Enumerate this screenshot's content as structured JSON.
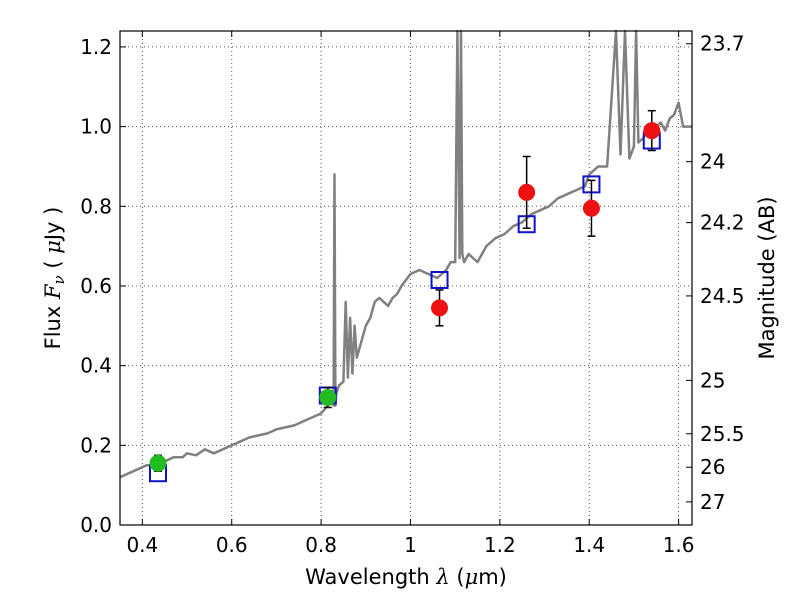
{
  "chart_data": {
    "type": "scatter",
    "xlabel": "Wavelength  λ (μm)",
    "ylabel": "Flux  F_ν  ( μJy )",
    "ylabel_parts": {
      "prefix": "Flux  ",
      "var": "F",
      "sub": "ν",
      "unit_open": "  ( ",
      "mu": "μ",
      "unit_close": "Jy )"
    },
    "xlabel_parts": {
      "prefix": "Wavelength  ",
      "var": "λ",
      "unit_open": " (",
      "mu": "μ",
      "unit_close": "m)"
    },
    "ylabel_right": "Magnitude (AB)",
    "xlim": [
      0.35,
      1.63
    ],
    "ylim": [
      0.0,
      1.24
    ],
    "grid": true,
    "x_ticks": [
      0.4,
      0.6,
      0.8,
      1.0,
      1.2,
      1.4,
      1.6
    ],
    "x_tick_labels": [
      "0.4",
      "0.6",
      "0.8",
      "1",
      "1.2",
      "1.4",
      "1.6"
    ],
    "y_ticks": [
      0.0,
      0.2,
      0.4,
      0.6,
      0.8,
      1.0,
      1.2
    ],
    "y_tick_labels": [
      "0.0",
      "0.2",
      "0.4",
      "0.6",
      "0.8",
      "1.0",
      "1.2"
    ],
    "right_ticks": [
      {
        "label": "23.7",
        "flux": 1.208
      },
      {
        "label": "24",
        "flux": 0.912
      },
      {
        "label": "24.2",
        "flux": 0.759
      },
      {
        "label": "24.5",
        "flux": 0.575
      },
      {
        "label": "25",
        "flux": 0.363
      },
      {
        "label": "25.5",
        "flux": 0.229
      },
      {
        "label": "26",
        "flux": 0.145
      },
      {
        "label": "27",
        "flux": 0.058
      }
    ],
    "colors": {
      "model": "#808080",
      "green_points": "#22bb22",
      "red_points": "#ee1111",
      "squares": "#1111cc",
      "errorbars": "#000000",
      "grid": "#555555"
    },
    "series": [
      {
        "name": "model-spectrum",
        "kind": "line",
        "x": [
          0.35,
          0.37,
          0.39,
          0.41,
          0.43,
          0.45,
          0.47,
          0.49,
          0.5,
          0.52,
          0.54,
          0.56,
          0.58,
          0.6,
          0.62,
          0.64,
          0.66,
          0.68,
          0.7,
          0.72,
          0.74,
          0.76,
          0.78,
          0.8,
          0.815,
          0.822,
          0.826,
          0.828,
          0.83,
          0.832,
          0.834,
          0.84,
          0.85,
          0.855,
          0.86,
          0.865,
          0.87,
          0.875,
          0.88,
          0.9,
          0.91,
          0.92,
          0.93,
          0.94,
          0.95,
          0.96,
          0.97,
          0.98,
          1.0,
          1.02,
          1.04,
          1.06,
          1.08,
          1.09,
          1.1,
          1.105,
          1.11,
          1.113,
          1.116,
          1.12,
          1.125,
          1.13,
          1.15,
          1.17,
          1.19,
          1.21,
          1.23,
          1.25,
          1.27,
          1.29,
          1.31,
          1.33,
          1.35,
          1.37,
          1.39,
          1.4,
          1.42,
          1.44,
          1.46,
          1.47,
          1.48,
          1.49,
          1.5,
          1.505,
          1.51,
          1.52,
          1.53,
          1.54,
          1.55,
          1.56,
          1.57,
          1.58,
          1.59,
          1.6,
          1.61,
          1.62,
          1.63
        ],
        "y": [
          0.12,
          0.13,
          0.14,
          0.15,
          0.15,
          0.16,
          0.17,
          0.17,
          0.18,
          0.175,
          0.19,
          0.18,
          0.19,
          0.2,
          0.21,
          0.22,
          0.225,
          0.23,
          0.24,
          0.245,
          0.25,
          0.26,
          0.27,
          0.28,
          0.3,
          0.31,
          0.32,
          0.3,
          0.88,
          0.3,
          0.33,
          0.35,
          0.36,
          0.56,
          0.37,
          0.52,
          0.38,
          0.5,
          0.42,
          0.5,
          0.52,
          0.56,
          0.57,
          0.56,
          0.55,
          0.57,
          0.58,
          0.6,
          0.63,
          0.64,
          0.63,
          0.62,
          0.64,
          0.66,
          0.66,
          1.24,
          0.67,
          1.24,
          0.68,
          0.66,
          0.67,
          0.68,
          0.66,
          0.7,
          0.72,
          0.73,
          0.75,
          0.76,
          0.78,
          0.79,
          0.8,
          0.82,
          0.83,
          0.84,
          0.85,
          0.88,
          0.9,
          0.9,
          1.24,
          0.93,
          1.24,
          0.92,
          0.95,
          1.24,
          0.96,
          0.97,
          0.99,
          0.98,
          1.0,
          1.01,
          0.99,
          1.02,
          1.03,
          1.06,
          1.0,
          1.0,
          1.0
        ]
      },
      {
        "name": "green-photometry",
        "kind": "points",
        "x": [
          0.435,
          0.815
        ],
        "y": [
          0.155,
          0.32
        ],
        "err": [
          0.02,
          0.025
        ]
      },
      {
        "name": "red-photometry",
        "kind": "points",
        "x": [
          1.065,
          1.26,
          1.405,
          1.54
        ],
        "y": [
          0.545,
          0.835,
          0.795,
          0.99
        ],
        "err": [
          0.045,
          0.09,
          0.07,
          0.05
        ]
      },
      {
        "name": "model-photometry-squares",
        "kind": "squares",
        "x": [
          0.435,
          0.815,
          1.065,
          1.26,
          1.405,
          1.54
        ],
        "y": [
          0.13,
          0.325,
          0.615,
          0.755,
          0.855,
          0.965
        ]
      }
    ]
  }
}
